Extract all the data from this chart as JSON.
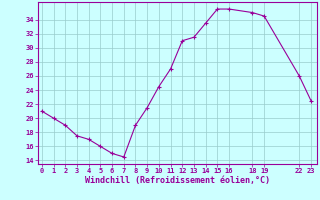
{
  "x": [
    0,
    1,
    2,
    3,
    4,
    5,
    6,
    7,
    8,
    9,
    10,
    11,
    12,
    13,
    14,
    15,
    16,
    18,
    19,
    22,
    23
  ],
  "y": [
    21,
    20,
    19,
    17.5,
    17,
    16,
    15,
    14.5,
    19,
    21.5,
    24.5,
    27,
    31,
    31.5,
    33.5,
    35.5,
    35.5,
    35,
    34.5,
    26,
    22.5
  ],
  "xticks": [
    0,
    1,
    2,
    3,
    4,
    5,
    6,
    7,
    8,
    9,
    10,
    11,
    12,
    13,
    14,
    15,
    16,
    18,
    19,
    22,
    23
  ],
  "xtick_labels": [
    "0",
    "1",
    "2",
    "3",
    "4",
    "5",
    "6",
    "7",
    "8",
    "9",
    "10",
    "11",
    "12",
    "13",
    "14",
    "15",
    "16",
    "18",
    "19",
    "22",
    "23"
  ],
  "yticks": [
    14,
    16,
    18,
    20,
    22,
    24,
    26,
    28,
    30,
    32,
    34
  ],
  "ytick_labels": [
    "14",
    "16",
    "18",
    "20",
    "22",
    "24",
    "26",
    "28",
    "30",
    "32",
    "34"
  ],
  "ylim": [
    13.5,
    36.5
  ],
  "xlim": [
    -0.3,
    23.5
  ],
  "xlabel": "Windchill (Refroidissement éolien,°C)",
  "line_color": "#990099",
  "marker": "+",
  "bg_color": "#ccffff",
  "grid_color": "#99cccc",
  "title": ""
}
